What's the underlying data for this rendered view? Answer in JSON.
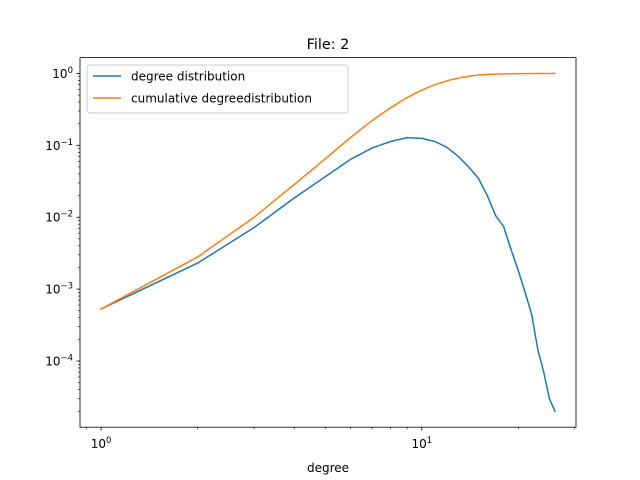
{
  "chart_data": {
    "type": "line",
    "title": "File: 2",
    "xlabel": "degree",
    "ylabel": "",
    "xscale": "log",
    "yscale": "log",
    "xlim": [
      0.8595,
      30.257
    ],
    "ylim": [
      1.2e-05,
      1.66
    ],
    "grid": false,
    "legend_position": "top-left",
    "xticks": [
      {
        "value": 1,
        "base": "10",
        "exp": "0"
      },
      {
        "value": 10,
        "base": "10",
        "exp": "1"
      }
    ],
    "yticks": [
      {
        "value": 0.0001,
        "base": "10",
        "exp": "−4"
      },
      {
        "value": 0.001,
        "base": "10",
        "exp": "−3"
      },
      {
        "value": 0.01,
        "base": "10",
        "exp": "−2"
      },
      {
        "value": 0.1,
        "base": "10",
        "exp": "−1"
      },
      {
        "value": 1,
        "base": "10",
        "exp": "0"
      }
    ],
    "series": [
      {
        "name": "degree distribution",
        "color": "#1f77b4",
        "x": [
          1,
          2,
          3,
          4,
          5,
          6,
          7,
          8,
          9,
          10,
          11,
          12,
          13,
          14,
          15,
          16,
          17,
          18,
          19,
          20,
          21,
          22,
          23,
          24,
          25,
          26
        ],
        "y": [
          0.00053,
          0.0023,
          0.0072,
          0.0185,
          0.0365,
          0.064,
          0.092,
          0.113,
          0.128,
          0.125,
          0.113,
          0.093,
          0.07,
          0.05,
          0.035,
          0.02,
          0.0105,
          0.0074,
          0.0035,
          0.0018,
          0.0009,
          0.00045,
          0.000145,
          7e-05,
          3e-05,
          2e-05
        ]
      },
      {
        "name": "cumulative degreedistribution",
        "color": "#ff7f0e",
        "x": [
          1,
          2,
          3,
          4,
          5,
          6,
          7,
          8,
          9,
          10,
          11,
          12,
          13,
          14,
          15,
          16,
          17,
          18,
          19,
          20,
          21,
          22,
          23,
          24,
          25,
          26
        ],
        "y": [
          0.00053,
          0.0028,
          0.01,
          0.0285,
          0.065,
          0.129,
          0.221,
          0.334,
          0.462,
          0.587,
          0.7,
          0.793,
          0.863,
          0.913,
          0.948,
          0.968,
          0.978,
          0.986,
          0.99,
          0.993,
          0.995,
          0.997,
          0.998,
          0.999,
          0.999,
          1.0
        ]
      }
    ]
  }
}
